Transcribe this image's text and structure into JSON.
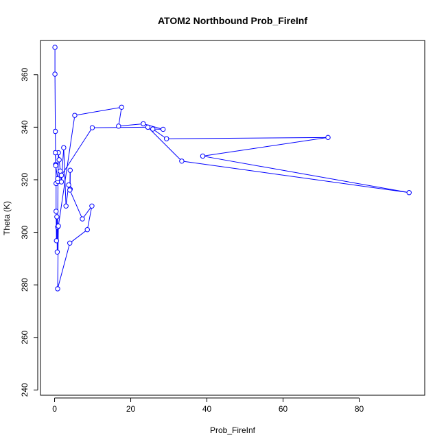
{
  "chart_data": {
    "type": "line",
    "title": "ATOM2 Northbound Prob_FireInf",
    "xlabel": "Prob_FireInf",
    "ylabel": "Theta (K)",
    "xlim": [
      -3.7,
      97.2
    ],
    "ylim": [
      238,
      373
    ],
    "xticks": [
      0,
      20,
      40,
      60,
      80
    ],
    "yticks": [
      240,
      260,
      280,
      300,
      320,
      340,
      360
    ],
    "grid": false,
    "marker": "open-circle",
    "color": "#0000ff",
    "series": [
      {
        "x": [
          0.1,
          0.1,
          0.2,
          0.3,
          0.4,
          0.4,
          0.5,
          0.6,
          0.7,
          0.8,
          0.9,
          1.0,
          1.2,
          1.5,
          1.8,
          2.4,
          3.0,
          3.7,
          4.1,
          4.1,
          4.0,
          7.3,
          9.8,
          8.6,
          4.0,
          0.8,
          1.0,
          5.3,
          17.6,
          16.8,
          23.3,
          28.5,
          25.8,
          29.4,
          71.8,
          38.9,
          93.1,
          33.4,
          24.5,
          9.9,
          1.8,
          0.8,
          0.3,
          0.2
        ],
        "y": [
          370.4,
          360.2,
          338.4,
          325.8,
          318.6,
          308.0,
          296.8,
          305.9,
          292.5,
          302.0,
          319.3,
          330.3,
          327.6,
          323.3,
          319.2,
          332.2,
          310.0,
          318.0,
          316.4,
          323.6,
          316.1,
          305.1,
          310.0,
          301.0,
          295.9,
          278.5,
          302.4,
          344.5,
          347.6,
          340.4,
          341.3,
          339.2,
          339.3,
          335.6,
          336.1,
          329.0,
          315.1,
          327.1,
          340.0,
          339.8,
          321.7,
          320.4,
          325.4,
          330.3
        ]
      }
    ]
  }
}
